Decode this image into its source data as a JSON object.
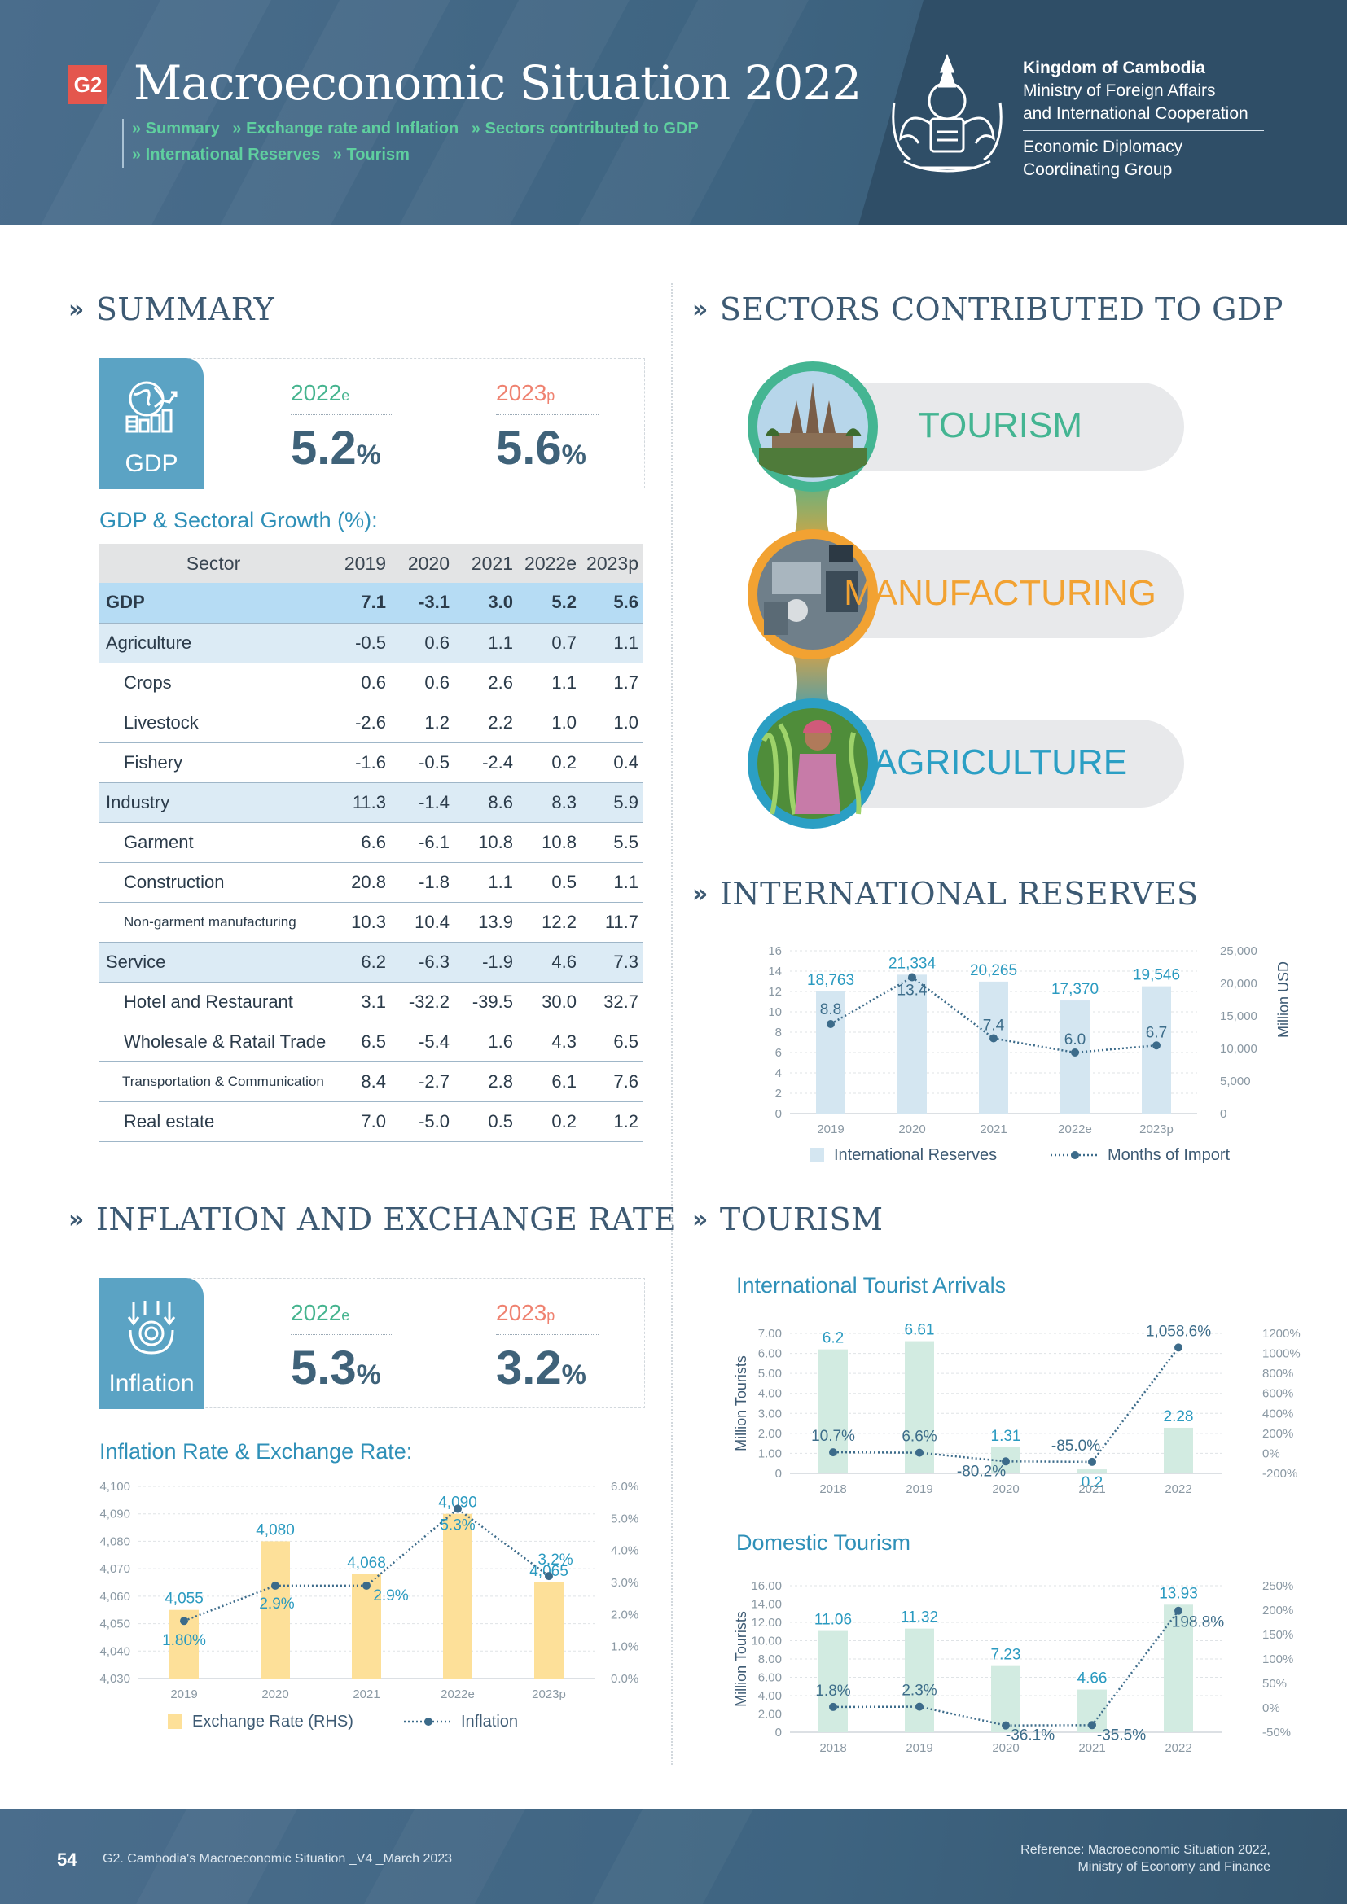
{
  "header": {
    "badge": "G2",
    "title": "Macroeconomic Situation 2022",
    "links_row1": [
      "» Summary",
      "» Exchange rate and Inflation",
      "» Sectors contributed to GDP"
    ],
    "links_row2": [
      "» International Reserves",
      "» Tourism"
    ],
    "org_line1": "Kingdom of Cambodia",
    "org_line2": "Ministry of Foreign Affairs",
    "org_line3": "and International Cooperation",
    "org_line4": "Economic Diplomacy",
    "org_line5": "Coordinating Group"
  },
  "colors": {
    "header_bg": "#3e6481",
    "accent_green": "#46b48f",
    "accent_salmon": "#ef8270",
    "tile_blue": "#5ba3c4",
    "heading_blue": "#2f90b8",
    "tourism": "#44b592",
    "manufacturing": "#f2a232",
    "agriculture": "#2b9fc4",
    "bar_blue": "#d4e6f1",
    "bar_yellow": "#fde099",
    "bar_green": "#d2ebe1",
    "line_dark": "#3c6b8a"
  },
  "summary": {
    "heading": "SUMMARY",
    "gdp_box": {
      "label": "GDP",
      "icon": "globe-chart-icon",
      "year_a": "2022",
      "year_a_suffix": "e",
      "value_a": "5.2",
      "unit_a": "%",
      "year_b": "2023",
      "year_b_suffix": "p",
      "value_b": "5.6",
      "unit_b": "%"
    },
    "table_title": "GDP & Sectoral Growth (%):",
    "table": {
      "headers": [
        "Sector",
        "2019",
        "2020",
        "2021",
        "2022e",
        "2023p"
      ],
      "rows": [
        {
          "kind": "gdp",
          "cells": [
            "GDP",
            "7.1",
            "-3.1",
            "3.0",
            "5.2",
            "5.6"
          ]
        },
        {
          "kind": "main",
          "cells": [
            "Agriculture",
            "-0.5",
            "0.6",
            "1.1",
            "0.7",
            "1.1"
          ]
        },
        {
          "kind": "sub",
          "cells": [
            "Crops",
            "0.6",
            "0.6",
            "2.6",
            "1.1",
            "1.7"
          ]
        },
        {
          "kind": "sub",
          "cells": [
            "Livestock",
            "-2.6",
            "1.2",
            "2.2",
            "1.0",
            "1.0"
          ]
        },
        {
          "kind": "sub",
          "cells": [
            "Fishery",
            "-1.6",
            "-0.5",
            "-2.4",
            "0.2",
            "0.4"
          ]
        },
        {
          "kind": "main",
          "cells": [
            "Industry",
            "11.3",
            "-1.4",
            "8.6",
            "8.3",
            "5.9"
          ]
        },
        {
          "kind": "sub",
          "cells": [
            "Garment",
            "6.6",
            "-6.1",
            "10.8",
            "10.8",
            "5.5"
          ]
        },
        {
          "kind": "sub",
          "cells": [
            "Construction",
            "20.8",
            "-1.8",
            "1.1",
            "0.5",
            "1.1"
          ]
        },
        {
          "kind": "sub-small",
          "cells": [
            "Non-garment manufacturing",
            "10.3",
            "10.4",
            "13.9",
            "12.2",
            "11.7"
          ]
        },
        {
          "kind": "main",
          "cells": [
            "Service",
            "6.2",
            "-6.3",
            "-1.9",
            "4.6",
            "7.3"
          ]
        },
        {
          "kind": "sub",
          "cells": [
            "Hotel and Restaurant",
            "3.1",
            "-32.2",
            "-39.5",
            "30.0",
            "32.7"
          ]
        },
        {
          "kind": "sub",
          "cells": [
            "Wholesale & Ratail Trade",
            "6.5",
            "-5.4",
            "1.6",
            "4.3",
            "6.5"
          ]
        },
        {
          "kind": "sub-small2",
          "cells": [
            "Transportation & Communication",
            "8.4",
            "-2.7",
            "2.8",
            "6.1",
            "7.6"
          ]
        },
        {
          "kind": "sub",
          "cells": [
            "Real estate",
            "7.0",
            "-5.0",
            "0.5",
            "0.2",
            "1.2"
          ]
        }
      ]
    }
  },
  "inflation": {
    "heading": "INFLATION AND EXCHANGE RATE",
    "box": {
      "label": "Inflation",
      "icon": "money-down-icon",
      "year_a": "2022",
      "year_a_suffix": "e",
      "value_a": "5.3",
      "unit_a": "%",
      "year_b": "2023",
      "year_b_suffix": "p",
      "value_b": "3.2",
      "unit_b": "%"
    },
    "chart_title": "Inflation Rate & Exchange Rate:"
  },
  "sectors": {
    "heading": "SECTORS CONTRIBUTED TO GDP",
    "items": [
      {
        "label": "TOURISM",
        "image": "angkor-wat-photo"
      },
      {
        "label": "MANUFACTURING",
        "image": "factory-workers-photo"
      },
      {
        "label": "AGRICULTURE",
        "image": "farmer-in-corn-field-photo"
      }
    ]
  },
  "reserves": {
    "heading": "INTERNATIONAL RESERVES"
  },
  "tourism": {
    "heading": "TOURISM",
    "intl_title": "International Tourist Arrivals",
    "domestic_title": "Domestic Tourism"
  },
  "chart_data": [
    {
      "id": "inflation-exchange",
      "type": "bar",
      "categories": [
        "2019",
        "2020",
        "2021",
        "2022e",
        "2023p"
      ],
      "series": [
        {
          "name": "Exchange Rate (RHS)",
          "type": "bar",
          "axis": "left",
          "values": [
            4055,
            4080,
            4068,
            4090,
            4065
          ],
          "labels": [
            "4,055",
            "4,080",
            "4,068",
            "4,090",
            "4,065"
          ]
        },
        {
          "name": "Inflation",
          "type": "line",
          "axis": "right",
          "values": [
            1.8,
            2.9,
            2.9,
            5.3,
            3.2
          ],
          "labels": [
            "1.80%",
            "2.9%",
            "2.9%",
            "5.3%",
            "3.2%"
          ]
        }
      ],
      "left_axis": {
        "ylim": [
          4030,
          4100
        ],
        "ticks": [
          "4,030",
          "4,040",
          "4,050",
          "4,060",
          "4,070",
          "4,080",
          "4,090",
          "4,100"
        ]
      },
      "right_axis": {
        "ylim": [
          0,
          6
        ],
        "ticks": [
          "0.0%",
          "1.0%",
          "2.0%",
          "3.0%",
          "4.0%",
          "5.0%",
          "6.0%"
        ]
      },
      "grid": true,
      "legend": "bottom"
    },
    {
      "id": "international-reserves",
      "type": "bar",
      "categories": [
        "2019",
        "2020",
        "2021",
        "2022e",
        "2023p"
      ],
      "series": [
        {
          "name": "International Reserves",
          "type": "bar",
          "axis": "right",
          "values": [
            18763,
            21334,
            20265,
            17370,
            19546
          ],
          "labels": [
            "18,763",
            "21,334",
            "20,265",
            "17,370",
            "19,546"
          ]
        },
        {
          "name": "Months of Import",
          "type": "line",
          "axis": "left",
          "values": [
            8.8,
            13.4,
            7.4,
            6.0,
            6.7
          ],
          "labels": [
            "8.8",
            "13.4",
            "7.4",
            "6.0",
            "6.7"
          ]
        }
      ],
      "left_axis": {
        "ylim": [
          0,
          16
        ],
        "ticks": [
          "0",
          "2",
          "4",
          "6",
          "8",
          "10",
          "12",
          "14",
          "16"
        ]
      },
      "right_axis": {
        "ylim": [
          0,
          25000
        ],
        "ticks": [
          "0",
          "5,000",
          "10,000",
          "15,000",
          "20,000",
          "25,000"
        ],
        "label": "Million USD"
      },
      "grid": true,
      "legend": "bottom"
    },
    {
      "id": "international-tourist-arrivals",
      "type": "bar",
      "categories": [
        "2018",
        "2019",
        "2020",
        "2021",
        "2022"
      ],
      "series": [
        {
          "type": "bar",
          "axis": "left",
          "values": [
            6.2,
            6.61,
            1.31,
            0.2,
            2.28
          ],
          "labels": [
            "6.2",
            "6.61",
            "1.31",
            "0.2",
            "2.28"
          ]
        },
        {
          "type": "line",
          "axis": "right",
          "values": [
            10.7,
            6.6,
            -80.2,
            -85.0,
            1058.6
          ],
          "labels": [
            "10.7%",
            "6.6%",
            "-80.2%",
            "-85.0%",
            "1,058.6%"
          ]
        }
      ],
      "left_axis": {
        "ylim": [
          0,
          7
        ],
        "ticks": [
          "0",
          "1.00",
          "2.00",
          "3.00",
          "4.00",
          "5.00",
          "6.00",
          "7.00"
        ],
        "label": "Million Tourists"
      },
      "right_axis": {
        "ylim": [
          -200,
          1200
        ],
        "ticks": [
          "-200%",
          "0%",
          "200%",
          "400%",
          "600%",
          "800%",
          "1000%",
          "1200%"
        ]
      },
      "grid": true
    },
    {
      "id": "domestic-tourism",
      "type": "bar",
      "categories": [
        "2018",
        "2019",
        "2020",
        "2021",
        "2022"
      ],
      "series": [
        {
          "type": "bar",
          "axis": "left",
          "values": [
            11.06,
            11.32,
            7.23,
            4.66,
            13.93
          ],
          "labels": [
            "11.06",
            "11.32",
            "7.23",
            "4.66",
            "13.93"
          ]
        },
        {
          "type": "line",
          "axis": "right",
          "values": [
            1.8,
            2.3,
            -36.1,
            -35.5,
            198.8
          ],
          "labels": [
            "1.8%",
            "2.3%",
            "-36.1%",
            "-35.5%",
            "198.8%"
          ]
        }
      ],
      "left_axis": {
        "ylim": [
          0,
          16
        ],
        "ticks": [
          "0",
          "2.00",
          "4.00",
          "6.00",
          "8.00",
          "10.00",
          "12.00",
          "14.00",
          "16.00"
        ],
        "label": "Million Tourists"
      },
      "right_axis": {
        "ylim": [
          -50,
          250
        ],
        "ticks": [
          "-50%",
          "0%",
          "50%",
          "100%",
          "150%",
          "200%",
          "250%"
        ]
      },
      "grid": true
    }
  ],
  "footer": {
    "page_number": "54",
    "doc_line": "G2. Cambodia's Macroeconomic Situation  _V4 _March 2023",
    "ref_line1": "Reference: Macroeconomic Situation 2022,",
    "ref_line2": "Ministry of Economy and Finance"
  }
}
